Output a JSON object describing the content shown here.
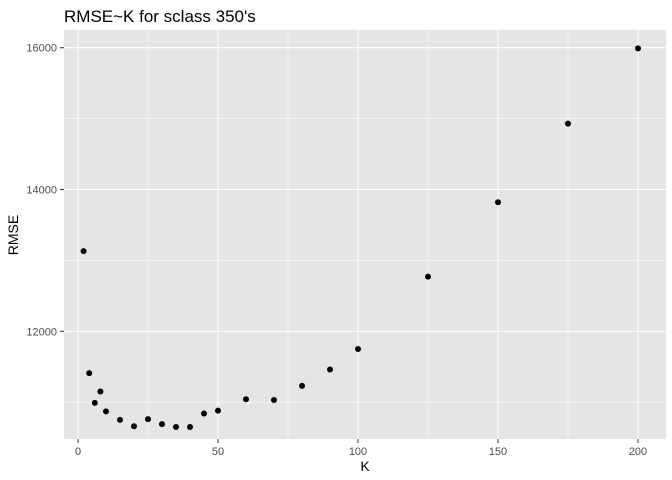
{
  "chart_data": {
    "type": "scatter",
    "title": "RMSE~K for sclass 350's",
    "xlabel": "K",
    "ylabel": "RMSE",
    "xlim": [
      -5,
      210
    ],
    "ylim": [
      10480,
      16250
    ],
    "x_ticks": [
      0,
      50,
      100,
      150,
      200
    ],
    "y_ticks": [
      12000,
      14000,
      16000
    ],
    "grid": true,
    "legend": "none",
    "colors": {
      "panel_background": "#e5e5e5",
      "gridline": "#ffffff",
      "point": "#000000",
      "tick_label": "#4d4d4d"
    },
    "points": [
      {
        "x": 2,
        "y": 13130
      },
      {
        "x": 4,
        "y": 11410
      },
      {
        "x": 6,
        "y": 10990
      },
      {
        "x": 8,
        "y": 11150
      },
      {
        "x": 10,
        "y": 10870
      },
      {
        "x": 15,
        "y": 10750
      },
      {
        "x": 20,
        "y": 10660
      },
      {
        "x": 25,
        "y": 10760
      },
      {
        "x": 30,
        "y": 10690
      },
      {
        "x": 35,
        "y": 10650
      },
      {
        "x": 40,
        "y": 10650
      },
      {
        "x": 45,
        "y": 10840
      },
      {
        "x": 50,
        "y": 10880
      },
      {
        "x": 60,
        "y": 11040
      },
      {
        "x": 70,
        "y": 11030
      },
      {
        "x": 80,
        "y": 11230
      },
      {
        "x": 90,
        "y": 11460
      },
      {
        "x": 100,
        "y": 11750
      },
      {
        "x": 125,
        "y": 12770
      },
      {
        "x": 150,
        "y": 13820
      },
      {
        "x": 175,
        "y": 14930
      },
      {
        "x": 200,
        "y": 15990
      }
    ]
  }
}
